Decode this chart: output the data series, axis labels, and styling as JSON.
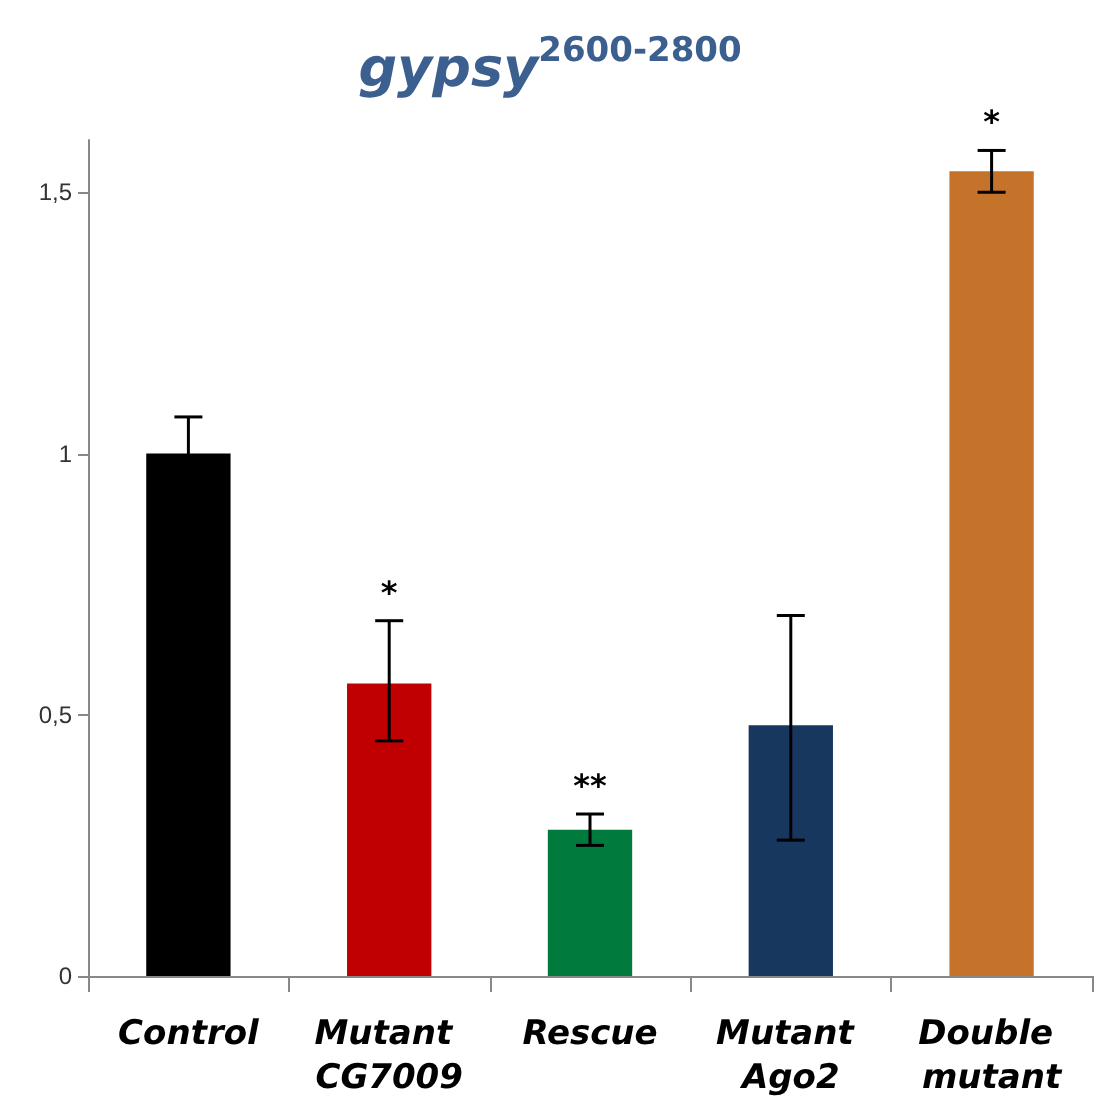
{
  "chart_data": {
    "type": "bar",
    "title": "gypsy$^{2600-2800}$",
    "categories": [
      "Control",
      "Mutant CG7009",
      "Rescue",
      "Mutant Ago2",
      "Double mutant"
    ],
    "values": [
      1.0,
      0.56,
      0.28,
      0.48,
      1.54
    ],
    "colors": [
      "#000000",
      "#c00000",
      "#007a3d",
      "#17375e",
      "#c5722a"
    ],
    "errors": [
      0.07,
      [
        0.45,
        0.68
      ],
      [
        0.25,
        0.31
      ],
      [
        0.26,
        0.69
      ],
      [
        1.5,
        1.58
      ]
    ],
    "ylim": [
      0,
      1.6
    ],
    "yticks": [
      0,
      {
        "value": 0.5,
        "label": "0,5"
      },
      1,
      {
        "value": 1.5,
        "label": "1,5"
      }
    ],
    "grid": false,
    "annotations": [
      {
        "text": "*",
        "x": "Mutant CG7009",
        "y": 0.68
      },
      {
        "text": "**",
        "x": "Rescue",
        "y": 0.31
      },
      {
        "text": "*",
        "x": "Double mutant",
        "y": 1.58
      }
    ]
  }
}
